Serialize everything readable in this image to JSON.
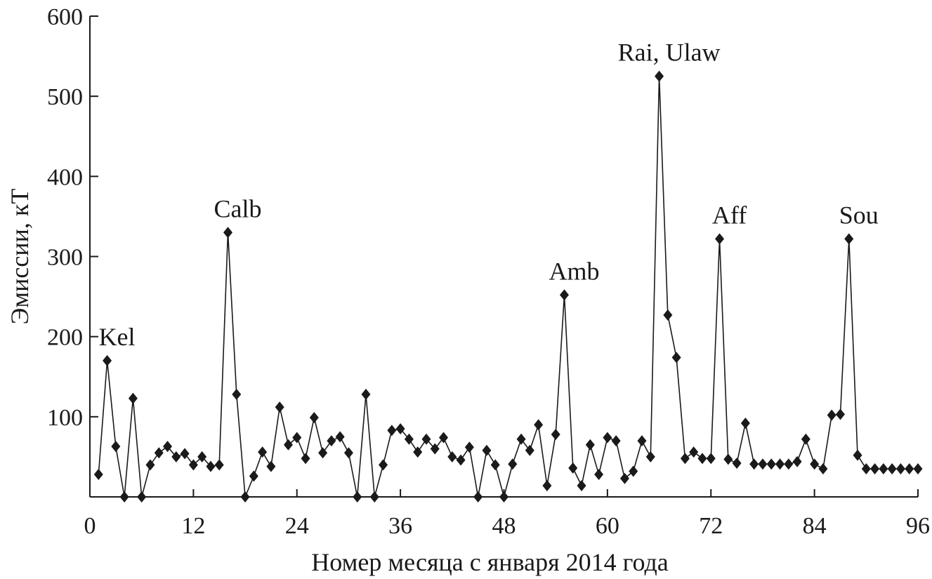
{
  "chart_data": {
    "type": "line",
    "title": "",
    "xlabel": "Номер месяца с января 2014 года",
    "ylabel": "Эмиссии, кТ",
    "xlim": [
      0,
      96
    ],
    "ylim": [
      0,
      600
    ],
    "xticks": [
      0,
      12,
      24,
      36,
      48,
      60,
      72,
      84,
      96
    ],
    "yticks": [
      100,
      200,
      300,
      400,
      500,
      600
    ],
    "grid": false,
    "legend": "none",
    "color": "#1a1a1a",
    "marker": "diamond",
    "series": [
      {
        "x": [
          1,
          2,
          3,
          4,
          5,
          6,
          7,
          8,
          9,
          10,
          11,
          12,
          13,
          14,
          15,
          16,
          17,
          18,
          19,
          20,
          21,
          22,
          23,
          24,
          25,
          26,
          27,
          28,
          29,
          30,
          31,
          32,
          33,
          34,
          35,
          36,
          37,
          38,
          39,
          40,
          41,
          42,
          43,
          44,
          45,
          46,
          47,
          48,
          49,
          50,
          51,
          52,
          53,
          54,
          55,
          56,
          57,
          58,
          59,
          60,
          61,
          62,
          63,
          64,
          65,
          66,
          67,
          68,
          69,
          70,
          71,
          72,
          73,
          74,
          75,
          76,
          77,
          78,
          79,
          80,
          81,
          82,
          83,
          84,
          85,
          86,
          87,
          88,
          89,
          90,
          91,
          92,
          93,
          94,
          95,
          96
        ],
        "values": [
          28,
          170,
          63,
          0,
          123,
          0,
          40,
          55,
          63,
          50,
          54,
          40,
          50,
          38,
          40,
          330,
          128,
          0,
          26,
          56,
          38,
          112,
          65,
          74,
          48,
          99,
          55,
          70,
          75,
          55,
          0,
          128,
          0,
          40,
          83,
          85,
          72,
          56,
          72,
          60,
          74,
          50,
          46,
          62,
          0,
          58,
          40,
          0,
          41,
          72,
          58,
          90,
          14,
          78,
          252,
          36,
          14,
          65,
          28,
          74,
          70,
          23,
          32,
          70,
          50,
          525,
          227,
          174,
          48,
          56,
          48,
          48,
          322,
          47,
          42,
          92,
          41,
          41,
          41,
          41,
          41,
          44,
          72,
          41,
          35,
          102,
          103,
          322,
          52,
          35,
          35,
          35,
          35,
          35,
          35,
          35
        ]
      }
    ],
    "annotations": [
      {
        "label": "Kel",
        "x": 2,
        "y": 170
      },
      {
        "label": "Calb",
        "x": 16,
        "y": 330
      },
      {
        "label": "Amb",
        "x": 55,
        "y": 252
      },
      {
        "label": "Rai, Ulaw",
        "x": 66,
        "y": 525
      },
      {
        "label": "Aff",
        "x": 73,
        "y": 322
      },
      {
        "label": "Sou",
        "x": 88,
        "y": 322
      }
    ]
  }
}
